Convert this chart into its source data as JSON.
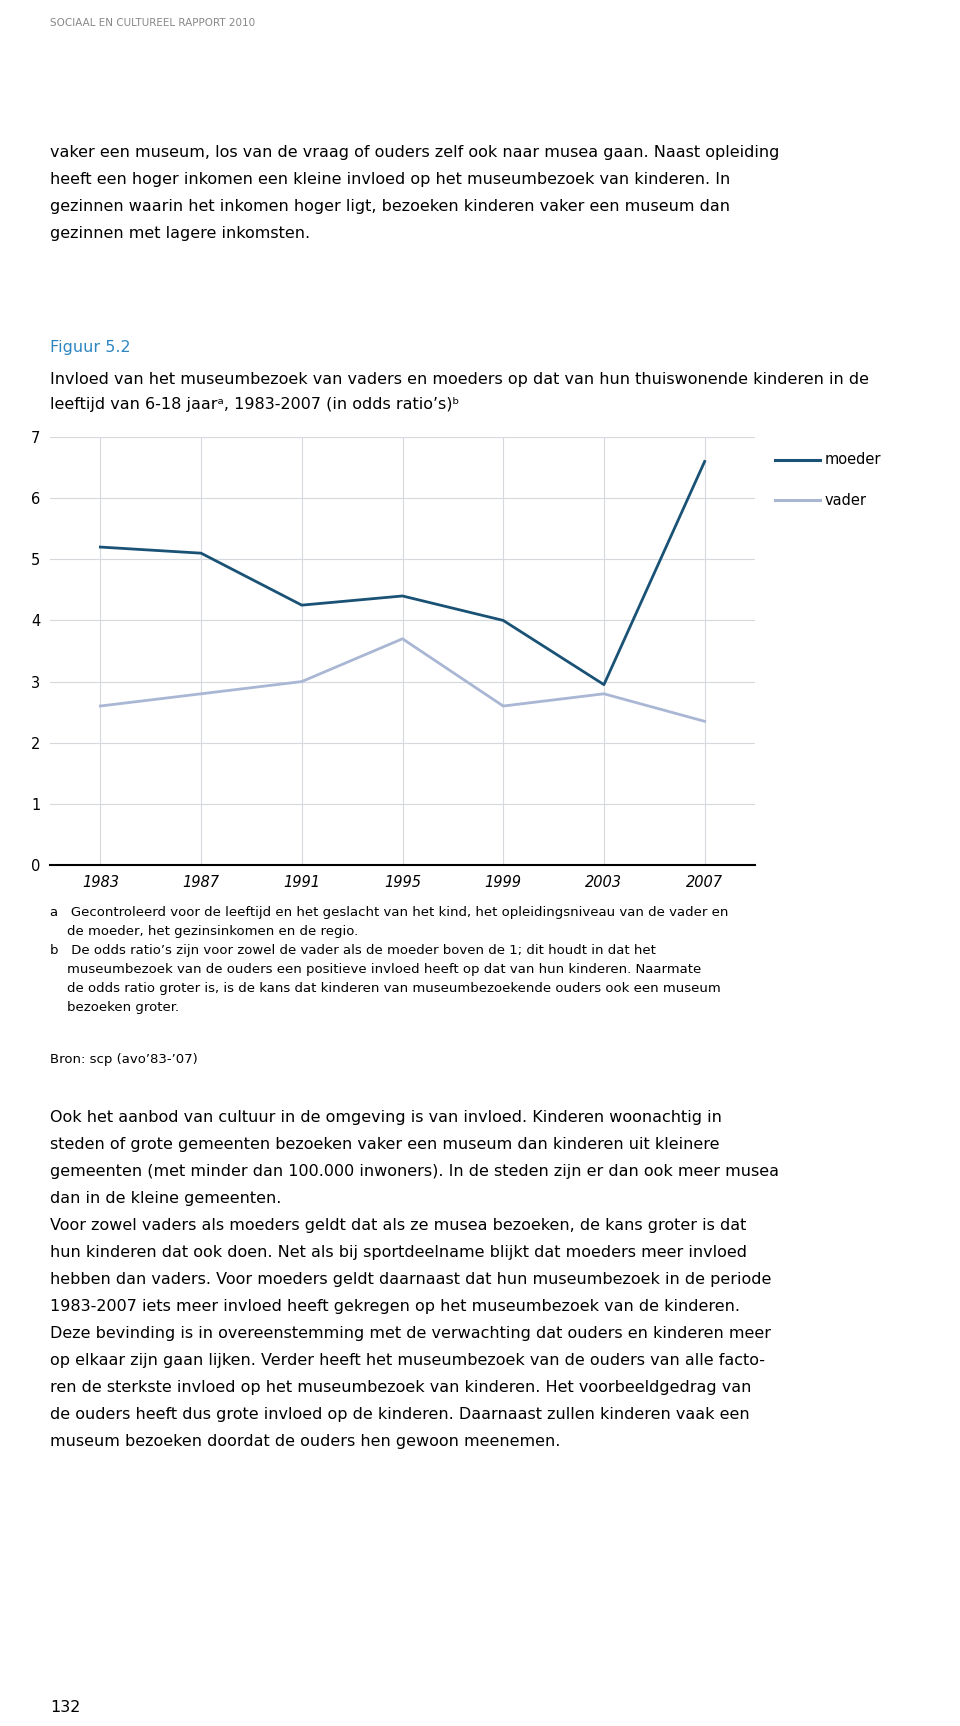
{
  "header": "SOCIAAL EN CULTUREEL RAPPORT 2010",
  "intro_line1": "vaker een museum, los van de vraag of ouders zelf ook naar musea gaan. Naast opleiding",
  "intro_line2": "heeft een hoger inkomen een kleine invloed op het museumbezoek van kinderen. In",
  "intro_line3": "gezinnen waarin het inkomen hoger ligt, bezoeken kinderen vaker een museum dan",
  "intro_line4": "gezinnen met lagere inkomsten.",
  "fig_label": "Figuur 5.2",
  "fig_title_line1": "Invloed van het museumbezoek van vaders en moeders op dat van hun thuiswonende kinderen in de",
  "fig_title_line2": "leeftijd van 6-18 jaarᵃ, 1983-2007 (in odds ratio’s)ᵇ",
  "years": [
    1983,
    1987,
    1991,
    1995,
    1999,
    2003,
    2007
  ],
  "moeder": [
    5.2,
    5.1,
    4.25,
    4.4,
    4.0,
    2.95,
    6.6
  ],
  "vader": [
    2.6,
    2.8,
    3.0,
    3.7,
    2.6,
    2.8,
    2.35
  ],
  "moeder_color": "#1a5276",
  "vader_color": "#aab7d4",
  "ylim": [
    0,
    7
  ],
  "yticks": [
    0,
    1,
    2,
    3,
    4,
    5,
    6,
    7
  ],
  "xticks": [
    1983,
    1987,
    1991,
    1995,
    1999,
    2003,
    2007
  ],
  "grid_color": "#d5d8dc",
  "note_a_line1": "a   Gecontroleerd voor de leeftijd en het geslacht van het kind, het opleidingsniveau van de vader en",
  "note_a_line2": "    de moeder, het gezinsinkomen en de regio.",
  "note_b_line1": "b   De odds ratio’s zijn voor zowel de vader als de moeder boven de 1; dit houdt in dat het",
  "note_b_line2": "    museumbezoek van de ouders een positieve invloed heeft op dat van hun kinderen. Naarmate",
  "note_b_line3": "    de odds ratio groter is, is de kans dat kinderen van museumbezoekende ouders ook een museum",
  "note_b_line4": "    bezoeken groter.",
  "source": "Bron: scp (avo’83-’07)",
  "body_para1_line1": "Ook het aanbod van cultuur in de omgeving is van invloed. Kinderen woonachtig in",
  "body_para1_line2": "steden of grote gemeenten bezoeken vaker een museum dan kinderen uit kleinere",
  "body_para1_line3": "gemeenten (met minder dan 100.000 inwoners). In de steden zijn er dan ook meer musea",
  "body_para1_line4": "dan in de kleine gemeenten.",
  "body_para2_line1": "Voor zowel vaders als moeders geldt dat als ze musea bezoeken, de kans groter is dat",
  "body_para2_line2": "hun kinderen dat ook doen. Net als bij sportdeelname blijkt dat moeders meer invloed",
  "body_para2_line3": "hebben dan vaders. Voor moeders geldt daarnaast dat hun museumbezoek in de periode",
  "body_para2_line4": "1983-2007 iets meer invloed heeft gekregen op het museumbezoek van de kinderen.",
  "body_para3_line1": "Deze bevinding is in overeenstemming met de verwachting dat ouders en kinderen meer",
  "body_para3_line2": "op elkaar zijn gaan lijken. Verder heeft het museumbezoek van de ouders van alle facto-",
  "body_para3_line3": "ren de sterkste invloed op het museumbezoek van kinderen. Het voorbeeldgedrag van",
  "body_para3_line4": "de ouders heeft dus grote invloed op de kinderen. Daarnaast zullen kinderen vaak een",
  "body_para3_line5": "museum bezoeken doordat de ouders hen gewoon meenemen.",
  "page_number": "132",
  "fig_label_color": "#2e86c1",
  "header_color": "#888888",
  "separator_color": "#2e86c1"
}
